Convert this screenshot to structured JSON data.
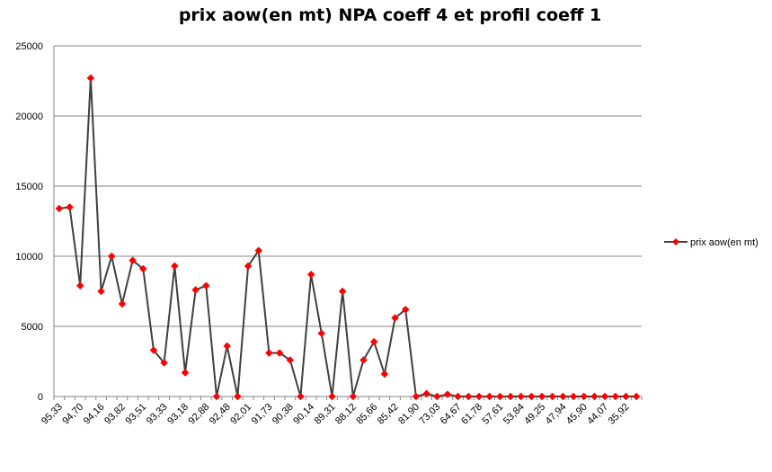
{
  "chart_data": {
    "type": "line",
    "title": "prix aow(en mt) NPA coeff 4 et profil coeff 1",
    "xlabel": "",
    "ylabel": "",
    "ylim": [
      0,
      25000
    ],
    "yticks": [
      "0",
      "5000",
      "10000",
      "15000",
      "20000",
      "25000"
    ],
    "grid": true,
    "legend_position": "right",
    "x_tick_labels": [
      "95,33",
      "94,70",
      "94,16",
      "93,82",
      "93,51",
      "93,33",
      "93,18",
      "92,88",
      "92,48",
      "92,01",
      "91,73",
      "90,38",
      "90,14",
      "89,31",
      "88,12",
      "85,66",
      "85,42",
      "81,90",
      "73,03",
      "64,67",
      "61,78",
      "57,61",
      "53,84",
      "49,25",
      "47,94",
      "45,90",
      "44,07",
      "35,92"
    ],
    "series": [
      {
        "name": "prix aow(en mt)",
        "color": "#404040",
        "marker_color": "#ff0000",
        "values": [
          13400,
          13500,
          7900,
          22700,
          7500,
          10000,
          6600,
          9700,
          9100,
          3300,
          2400,
          9300,
          1700,
          7600,
          7900,
          0,
          3600,
          0,
          9300,
          10400,
          3100,
          3100,
          2600,
          0,
          8700,
          4500,
          0,
          7500,
          0,
          2600,
          3900,
          1600,
          5600,
          6200,
          0,
          200,
          0,
          150,
          0,
          0,
          0,
          0,
          0,
          0,
          0,
          0,
          0,
          0,
          0,
          0,
          0,
          0,
          0,
          0,
          0,
          0
        ]
      }
    ]
  }
}
